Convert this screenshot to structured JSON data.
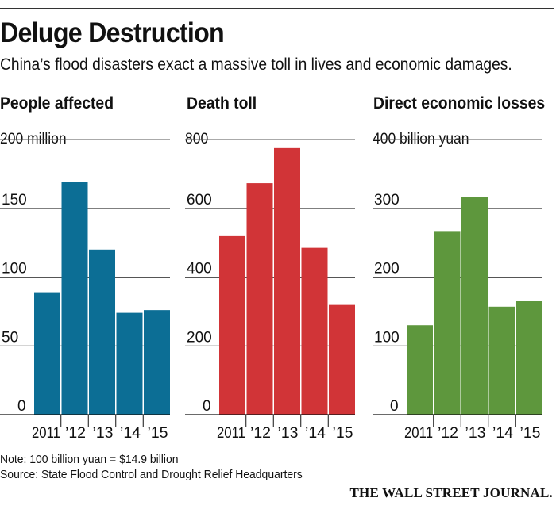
{
  "title": "Deluge Destruction",
  "subtitle": "China’s flood disasters exact a massive toll in lives and economic damages.",
  "note": "Note: 100 billion yuan = $14.9 billion",
  "source": "Source: State Flood Control and Drought Relief Headquarters",
  "brand": "THE WALL STREET JOURNAL.",
  "chart_data": [
    {
      "type": "bar",
      "title": "People affected",
      "unit_label": "200 million",
      "categories": [
        "2011",
        "’12",
        "’13",
        "’14",
        "’15"
      ],
      "values": [
        89,
        169,
        120,
        74,
        76
      ],
      "ylim": [
        0,
        200
      ],
      "yticks": [
        "0",
        "50",
        "100",
        "150"
      ],
      "color": "#0c6e95"
    },
    {
      "type": "bar",
      "title": "Death toll",
      "unit_label": "800",
      "categories": [
        "2011",
        "’12",
        "’13",
        "’14",
        "’15"
      ],
      "values": [
        519,
        673,
        775,
        485,
        319
      ],
      "ylim": [
        0,
        800
      ],
      "yticks": [
        "0",
        "200",
        "400",
        "600"
      ],
      "color": "#d13437"
    },
    {
      "type": "bar",
      "title": "Direct economic losses",
      "unit_label": "400 billion yuan",
      "categories": [
        "2011",
        "’12",
        "’13",
        "’14",
        "’15"
      ],
      "values": [
        130,
        267,
        316,
        157,
        166
      ],
      "ylim": [
        0,
        400
      ],
      "yticks": [
        "0",
        "100",
        "200",
        "300"
      ],
      "color": "#5e973d"
    }
  ]
}
